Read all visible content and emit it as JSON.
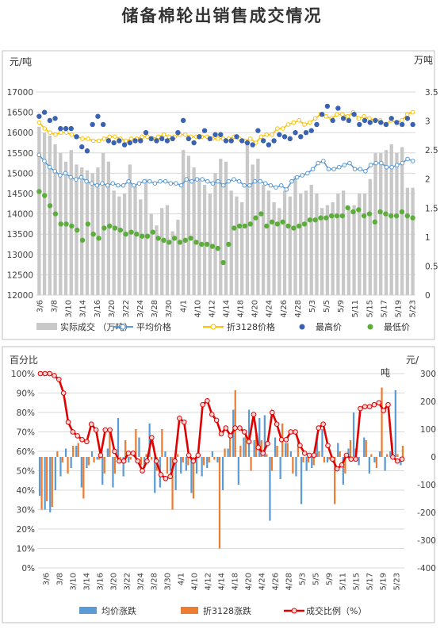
{
  "title": "储备棉轮出销售成交情况",
  "colors": {
    "volume_bar": "#c8c8c8",
    "avg_price": "#5b9bd5",
    "price_3128": "#ffc000",
    "high": "#3a62b0",
    "low": "#5cad3c",
    "avg_change": "#5b9bd5",
    "change_3128": "#ed7d31",
    "ratio": "#e00000",
    "grid": "#d9d9d9"
  },
  "chart_data": [
    {
      "type": "bar",
      "title": "",
      "ylabel_left": "元/吨",
      "ylabel_right": "万吨",
      "ylim_left": [
        12000,
        17000
      ],
      "ylim_right": [
        0,
        3.5
      ],
      "yticks_left": [
        "12000",
        "12500",
        "13000",
        "13500",
        "14000",
        "14500",
        "15000",
        "15500",
        "16000",
        "16500",
        "17000"
      ],
      "yticks_right": [
        "0",
        "0.5",
        "1",
        "1.5",
        "2",
        "2.5",
        "3",
        "3.5"
      ],
      "x_tick_labels": [
        "3/6",
        "3/8",
        "3/10",
        "3/14",
        "3/16",
        "3/20",
        "3/22",
        "3/24",
        "3/28",
        "3/30",
        "4/1",
        "4/10",
        "4/12",
        "4/14",
        "4/18",
        "4/20",
        "4/24",
        "4/26",
        "4/28",
        "5/3",
        "5/5",
        "5/9",
        "5/11",
        "5/15",
        "5/17",
        "5/19",
        "5/23"
      ],
      "legend": [
        "实际成交 （万吨）",
        "平均价格",
        "折3128价格",
        "最高价",
        "最低价"
      ],
      "series": [
        {
          "name": "实际成交 （万吨）",
          "axis": "right",
          "kind": "bar",
          "values": [
            2.9,
            2.8,
            2.75,
            2.6,
            2.45,
            2.3,
            2.5,
            2.25,
            2.2,
            2.15,
            2.1,
            2.2,
            2.45,
            2.3,
            1.8,
            1.7,
            1.75,
            2.25,
            1.9,
            1.65,
            2.0,
            1.4,
            1.2,
            1.5,
            1.55,
            1.1,
            1.3,
            2.5,
            2.4,
            2.2,
            2.0,
            1.9,
            1.75,
            2.1,
            2.35,
            2.3,
            1.8,
            1.7,
            1.6,
            2.6,
            2.25,
            2.35,
            1.9,
            1.8,
            1.6,
            1.5,
            1.8,
            1.7,
            2.05,
            1.75,
            1.8,
            1.9,
            1.75,
            1.5,
            1.55,
            1.6,
            1.75,
            1.8,
            1.5,
            1.55,
            1.75,
            1.75,
            2.0,
            2.45,
            2.45,
            2.5,
            2.6,
            2.45,
            2.55,
            1.85,
            1.85
          ]
        },
        {
          "name": "平均价格",
          "axis": "left",
          "kind": "line",
          "values": [
            15450,
            15300,
            15150,
            15050,
            14950,
            15000,
            14900,
            14850,
            14900,
            14800,
            14750,
            14700,
            14750,
            14700,
            14750,
            14700,
            14700,
            14800,
            14700,
            14750,
            14800,
            14800,
            14750,
            14800,
            14800,
            14750,
            14750,
            14700,
            14850,
            14800,
            14850,
            14850,
            14800,
            14750,
            14800,
            14700,
            14800,
            14850,
            14800,
            14700,
            14700,
            14800,
            14800,
            14750,
            14700,
            14650,
            14700,
            14600,
            14800,
            14900,
            14950,
            15000,
            15100,
            15250,
            15300,
            15100,
            15100,
            15150,
            15200,
            15250,
            15100,
            15100,
            15050,
            15200,
            15250,
            15250,
            15150,
            15150,
            15200,
            15250,
            15350,
            15300
          ]
        },
        {
          "name": "折3128价格",
          "axis": "left",
          "kind": "line",
          "values": [
            16250,
            16100,
            16000,
            15950,
            16000,
            16000,
            15950,
            15900,
            15850,
            15850,
            15800,
            15800,
            15850,
            15900,
            15900,
            15850,
            15800,
            15850,
            15850,
            15900,
            15900,
            15850,
            15900,
            15950,
            15900,
            15900,
            15950,
            15950,
            15900,
            15900,
            15900,
            15900,
            15850,
            15850,
            15850,
            15850,
            15900,
            15850,
            15800,
            15850,
            15750,
            15900,
            15950,
            15950,
            16100,
            16100,
            16200,
            16250,
            16300,
            16200,
            16250,
            16350,
            16450,
            16400,
            16350,
            16450,
            16450,
            16400,
            16500,
            16350,
            16400,
            16350,
            16300,
            16300,
            16200,
            16300,
            16250,
            16300,
            16450,
            16500
          ]
        },
        {
          "name": "最高价",
          "axis": "left",
          "kind": "scatter",
          "values": [
            16400,
            16500,
            16300,
            16350,
            16100,
            16100,
            16100,
            15900,
            15650,
            15550,
            16200,
            16400,
            16200,
            15800,
            15750,
            15800,
            15700,
            15750,
            15800,
            15800,
            16000,
            15850,
            15800,
            15850,
            15800,
            15850,
            16000,
            16300,
            15850,
            15750,
            15900,
            16050,
            15850,
            15950,
            15950,
            15800,
            15800,
            15900,
            15800,
            15750,
            15700,
            16050,
            15800,
            15700,
            15800,
            15950,
            15900,
            15850,
            16000,
            15900,
            16000,
            16050,
            16200,
            16450,
            16650,
            16300,
            16600,
            16350,
            16300,
            16450,
            16200,
            16300,
            16250,
            16300,
            16250,
            16200,
            16350,
            16250,
            16200,
            16350,
            16200
          ]
        },
        {
          "name": "最低价",
          "axis": "left",
          "kind": "scatter",
          "values": [
            14550,
            14450,
            14200,
            14000,
            13750,
            13750,
            13700,
            13600,
            13350,
            13750,
            13500,
            13400,
            13650,
            13700,
            13650,
            13600,
            13500,
            13550,
            13500,
            13450,
            13450,
            13550,
            13400,
            13350,
            13300,
            13400,
            13300,
            13350,
            13400,
            13300,
            13250,
            13250,
            13200,
            13150,
            12800,
            13250,
            13650,
            13700,
            13700,
            13750,
            13900,
            14000,
            13700,
            13800,
            13750,
            13800,
            13700,
            13650,
            13700,
            13750,
            13850,
            13850,
            13900,
            13900,
            13950,
            13950,
            13950,
            14150,
            14050,
            14100,
            13950,
            14000,
            13800,
            14050,
            14000,
            13950,
            13950,
            14050,
            13950,
            13900
          ]
        }
      ]
    },
    {
      "type": "bar",
      "title": "",
      "ylabel_left": "百分比",
      "ylabel_right": "元/吨",
      "ylim_left": [
        0,
        100
      ],
      "ylim_right": [
        -400,
        300
      ],
      "yticks_left": [
        "0%",
        "10%",
        "20%",
        "30%",
        "40%",
        "50%",
        "60%",
        "70%",
        "80%",
        "90%",
        "100%"
      ],
      "yticks_right": [
        "-400",
        "-300",
        "-200",
        "-100",
        "0",
        "100",
        "200",
        "300"
      ],
      "x_tick_labels": [
        "3/6",
        "3/8",
        "3/10",
        "3/14",
        "3/16",
        "3/20",
        "3/22",
        "3/24",
        "3/28",
        "3/30",
        "4/1",
        "4/10",
        "4/12",
        "4/14",
        "4/18",
        "4/20",
        "4/24",
        "4/26",
        "4/28",
        "5/3",
        "5/5",
        "5/9",
        "5/11",
        "5/15",
        "5/17",
        "5/19",
        "5/23"
      ],
      "legend": [
        "均价涨跌",
        "折3128涨跌",
        "成交比例（%）"
      ],
      "series": [
        {
          "name": "均价涨跌",
          "axis": "right",
          "kind": "bar",
          "values": [
            -140,
            -190,
            -200,
            -120,
            -70,
            30,
            -40,
            40,
            -110,
            -40,
            20,
            -10,
            -100,
            30,
            -110,
            140,
            -70,
            -20,
            20,
            70,
            -40,
            120,
            -130,
            -110,
            20,
            -50,
            -120,
            -60,
            -50,
            -130,
            -60,
            -70,
            -40,
            20,
            -20,
            -120,
            30,
            170,
            -100,
            70,
            170,
            60,
            140,
            150,
            -230,
            70,
            -80,
            50,
            20,
            -70,
            -170,
            -50,
            -40,
            80,
            100,
            -20,
            -20,
            50,
            -100,
            30,
            160,
            -30,
            70,
            -60,
            -20,
            20,
            -50,
            20,
            240,
            -30
          ]
        },
        {
          "name": "折3128涨跌",
          "axis": "right",
          "kind": "bar",
          "values": [
            -190,
            -160,
            -180,
            20,
            -20,
            -60,
            40,
            50,
            -150,
            -30,
            -20,
            -10,
            -60,
            100,
            -60,
            -20,
            60,
            -10,
            100,
            -30,
            10,
            -10,
            -50,
            100,
            -60,
            -190,
            10,
            -20,
            -30,
            -150,
            20,
            -30,
            -20,
            -10,
            -330,
            30,
            70,
            240,
            40,
            80,
            -50,
            80,
            60,
            10,
            -50,
            40,
            120,
            50,
            -60,
            60,
            -20,
            -20,
            -30,
            20,
            -20,
            -10,
            -170,
            20,
            -60,
            60,
            30,
            0,
            60,
            10,
            -40,
            250,
            10,
            50,
            10,
            40
          ]
        },
        {
          "name": "成交比例（%）",
          "axis": "left",
          "kind": "line",
          "values": [
            100,
            100,
            100,
            99,
            97,
            90,
            75,
            70,
            68,
            66,
            65,
            74,
            71,
            58,
            71,
            71,
            60,
            55,
            55,
            59,
            59,
            55,
            50,
            55,
            67,
            55,
            48,
            46,
            47,
            55,
            77,
            75,
            58,
            55,
            58,
            84,
            86,
            79,
            76,
            69,
            72,
            68,
            72,
            72,
            70,
            65,
            79,
            62,
            59,
            64,
            80,
            74,
            66,
            66,
            70,
            70,
            63,
            59,
            58,
            58,
            72,
            74,
            63,
            56,
            51,
            53,
            58,
            56,
            56,
            82,
            83,
            83,
            84,
            85,
            81,
            84,
            57,
            55,
            56
          ]
        }
      ]
    }
  ]
}
